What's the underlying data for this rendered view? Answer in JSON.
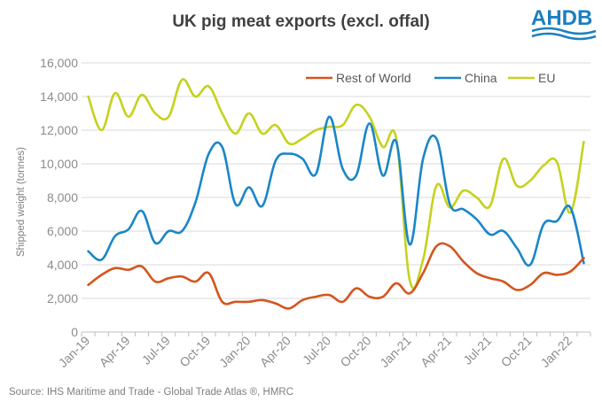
{
  "title": "UK pig meat exports (excl. offal)",
  "logo": {
    "text": "AHDB",
    "color": "#1a7fc1"
  },
  "source": "Source: IHS Maritime and Trade - Global Trade Atlas ®, HMRC",
  "chart_data": {
    "type": "line",
    "title": "UK pig meat exports (excl. offal)",
    "ylabel": "Shipped weight (tonnes)",
    "xlabel": "",
    "ylim": [
      0,
      16000
    ],
    "yticks": [
      0,
      2000,
      4000,
      6000,
      8000,
      10000,
      12000,
      14000,
      16000
    ],
    "ytick_labels": [
      "0",
      "2,000",
      "4,000",
      "6,000",
      "8,000",
      "10,000",
      "12,000",
      "14,000",
      "16,000"
    ],
    "x": [
      "Jan-19",
      "Feb-19",
      "Mar-19",
      "Apr-19",
      "May-19",
      "Jun-19",
      "Jul-19",
      "Aug-19",
      "Sep-19",
      "Oct-19",
      "Nov-19",
      "Dec-19",
      "Jan-20",
      "Feb-20",
      "Mar-20",
      "Apr-20",
      "May-20",
      "Jun-20",
      "Jul-20",
      "Aug-20",
      "Sep-20",
      "Oct-20",
      "Nov-20",
      "Dec-20",
      "Jan-21",
      "Feb-21",
      "Mar-21",
      "Apr-21",
      "May-21",
      "Jun-21",
      "Jul-21",
      "Aug-21",
      "Sep-21",
      "Oct-21",
      "Nov-21",
      "Dec-21",
      "Jan-22",
      "Feb-22"
    ],
    "x_tick_labels": [
      "Jan-19",
      "Apr-19",
      "Jul-19",
      "Oct-19",
      "Jan-20",
      "Apr-20",
      "Jul-20",
      "Oct-20",
      "Jan-21",
      "Apr-21",
      "Jul-21",
      "Oct-21",
      "Jan-22"
    ],
    "grid": true,
    "legend_position": "top-right",
    "series": [
      {
        "name": "Rest of World",
        "color": "#d4561e",
        "values": [
          2800,
          3400,
          3800,
          3700,
          3900,
          3000,
          3200,
          3300,
          3000,
          3500,
          1800,
          1800,
          1800,
          1900,
          1700,
          1400,
          1900,
          2100,
          2200,
          1800,
          2600,
          2100,
          2100,
          2900,
          2300,
          3500,
          5100,
          5100,
          4200,
          3500,
          3200,
          3000,
          2500,
          2800,
          3500,
          3400,
          3600,
          4400
        ]
      },
      {
        "name": "China",
        "color": "#1a86c8",
        "values": [
          4800,
          4300,
          5700,
          6100,
          7200,
          5300,
          6000,
          6000,
          7700,
          10600,
          11000,
          7600,
          8600,
          7500,
          10200,
          10600,
          10300,
          9400,
          12800,
          9700,
          9300,
          12400,
          9300,
          11300,
          5200,
          10300,
          11500,
          7600,
          7300,
          6700,
          5800,
          6000,
          5000,
          4000,
          6400,
          6600,
          7400,
          4100
        ]
      },
      {
        "name": "EU",
        "color": "#c5d21e",
        "values": [
          14000,
          12000,
          14200,
          12800,
          14100,
          13000,
          12800,
          15000,
          14000,
          14600,
          13000,
          11800,
          13000,
          11800,
          12300,
          11200,
          11500,
          12000,
          12200,
          12300,
          13500,
          12800,
          11000,
          11500,
          3100,
          4300,
          8700,
          7400,
          8400,
          8000,
          7500,
          10300,
          8700,
          9000,
          9900,
          10100,
          7100,
          11300
        ]
      }
    ]
  }
}
